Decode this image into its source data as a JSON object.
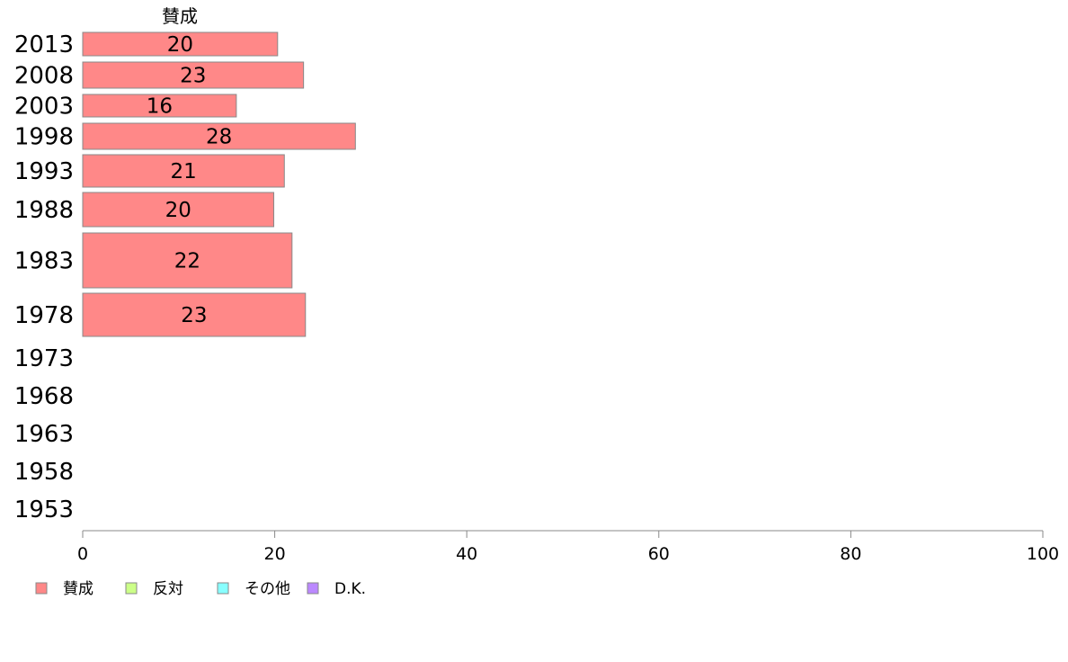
{
  "chart_data": {
    "type": "bar",
    "orientation": "horizontal",
    "stacked": true,
    "column_header": "賛成",
    "categories": [
      "2013",
      "2008",
      "2003",
      "1998",
      "1993",
      "1988",
      "1983",
      "1978",
      "1973",
      "1968",
      "1963",
      "1958",
      "1953"
    ],
    "series": [
      {
        "name": "賛成",
        "color": "#ff8888",
        "values": [
          20.3,
          23.0,
          16.0,
          28.4,
          21.0,
          19.9,
          21.8,
          23.2,
          null,
          null,
          null,
          null,
          null
        ],
        "labels": [
          "20",
          "23",
          "16",
          "28",
          "21",
          "20",
          "22",
          "23",
          "",
          "",
          "",
          "",
          ""
        ]
      },
      {
        "name": "反対",
        "color": "#ccff88",
        "values": [
          null,
          null,
          null,
          null,
          null,
          null,
          null,
          null,
          null,
          null,
          null,
          null,
          null
        ]
      },
      {
        "name": "その他",
        "color": "#88ffff",
        "values": [
          null,
          null,
          null,
          null,
          null,
          null,
          null,
          null,
          null,
          null,
          null,
          null,
          null
        ]
      },
      {
        "name": "D.K.",
        "color": "#bb88ff",
        "values": [
          null,
          null,
          null,
          null,
          null,
          null,
          null,
          null,
          null,
          null,
          null,
          null,
          null
        ]
      }
    ],
    "xlim": [
      0,
      100
    ],
    "xticks": [
      "0",
      "20",
      "40",
      "60",
      "80",
      "100"
    ],
    "grid": false,
    "legend_position": "bottom-left"
  }
}
